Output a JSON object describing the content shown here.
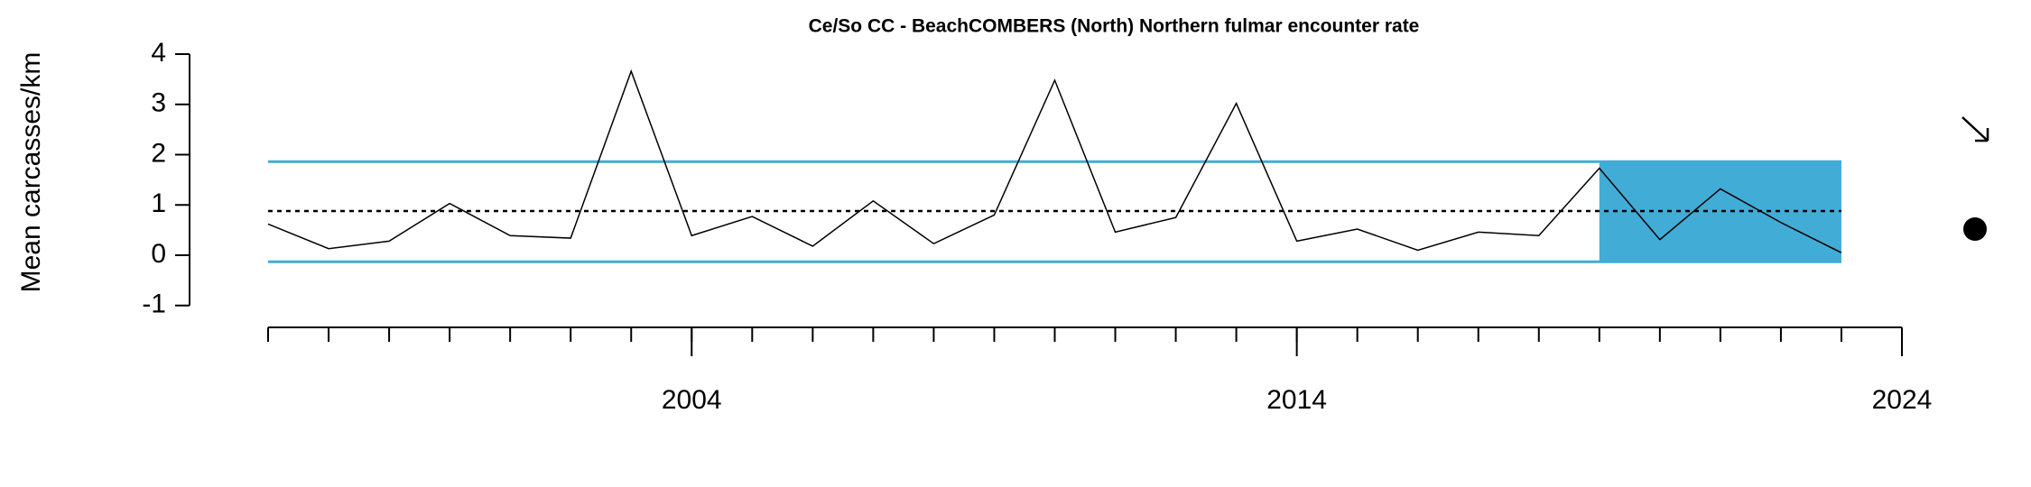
{
  "chart_data": {
    "type": "line",
    "title": "Ce/So CC - BeachCOMBERS (North) Northern fulmar encounter rate",
    "y_label": "Mean carcasses/km",
    "x": [
      1997,
      1998,
      1999,
      2000,
      2001,
      2002,
      2003,
      2004,
      2005,
      2006,
      2007,
      2008,
      2009,
      2010,
      2011,
      2012,
      2013,
      2014,
      2015,
      2016,
      2017,
      2018,
      2019,
      2020,
      2021,
      2022,
      2023
    ],
    "values": [
      0.62,
      0.13,
      0.28,
      1.03,
      0.39,
      0.34,
      3.66,
      0.39,
      0.77,
      0.18,
      1.08,
      0.23,
      0.8,
      3.48,
      0.46,
      0.75,
      3.02,
      0.28,
      0.52,
      0.1,
      0.46,
      0.39,
      1.73,
      0.31,
      1.32,
      0.65,
      0.05
    ],
    "color": "#000000",
    "mean": 0.88,
    "band": [
      -0.13,
      1.86
    ],
    "band_color": "#41acd6",
    "highlight_range": [
      2019,
      2023
    ],
    "xlim": [
      1997,
      2024
    ],
    "xticks": [
      2004,
      2014,
      2024
    ],
    "xminorticks": [
      1997,
      1998,
      1999,
      2000,
      2001,
      2002,
      2003,
      2004,
      2005,
      2006,
      2007,
      2008,
      2009,
      2010,
      2011,
      2012,
      2013,
      2014,
      2015,
      2016,
      2017,
      2018,
      2019,
      2020,
      2021,
      2022,
      2023,
      2024
    ],
    "ylim": [
      -1,
      4
    ],
    "yticks": [
      -1,
      0,
      1,
      2,
      3,
      4
    ]
  }
}
